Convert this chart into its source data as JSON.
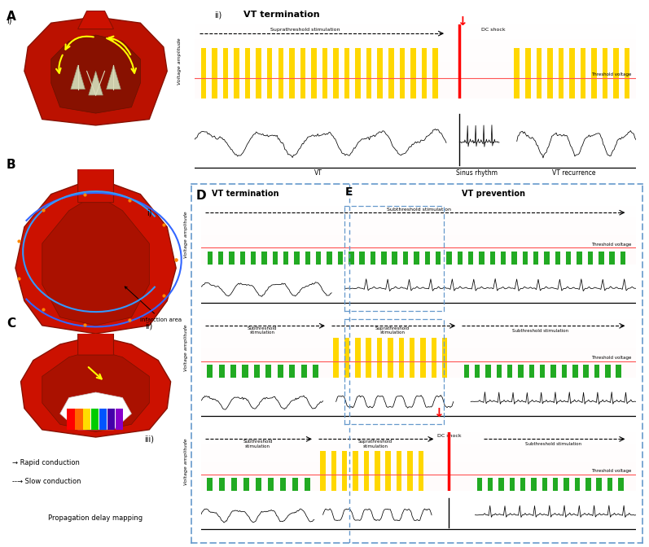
{
  "bg_pink_top": "#FF9999",
  "bg_pink_bottom": "#FFDDDD",
  "bar_yellow": "#FFD700",
  "bar_green": "#22AA22",
  "ecg_color": "#000000",
  "threshold_line_color": "#FF5555",
  "dashed_color": "#333333",
  "box_border_color": "#6699CC",
  "voltage_amplitude": "Voltage amplitude",
  "vt_termination": "VT termination",
  "vt_prevention": "VT prevention",
  "dc_shock": "DC shock",
  "threshold_voltage": "Threshold voltage",
  "suprathreshold_stim": "Suprathreshold stimulation",
  "subthreshold_stim": "Subthreshold stimulation",
  "subthreshold_stim2": "Subthreshold\nstimulation",
  "suprathreshold_stim2": "Suprathreshold\nstimulation",
  "vt_label": "VT",
  "sinus_rhythm": "Sinus rhythm",
  "vt_recurrence": "VT recurrence",
  "rapid_conduction": "→ Rapid conduction",
  "slow_conduction": "--→ Slow conduction",
  "propagation_mapping": "Propagation delay mapping",
  "infarction_area": "Infarction area",
  "heart_color1": "#CC1100",
  "heart_color2": "#991100",
  "heart_color3": "#BB2200"
}
